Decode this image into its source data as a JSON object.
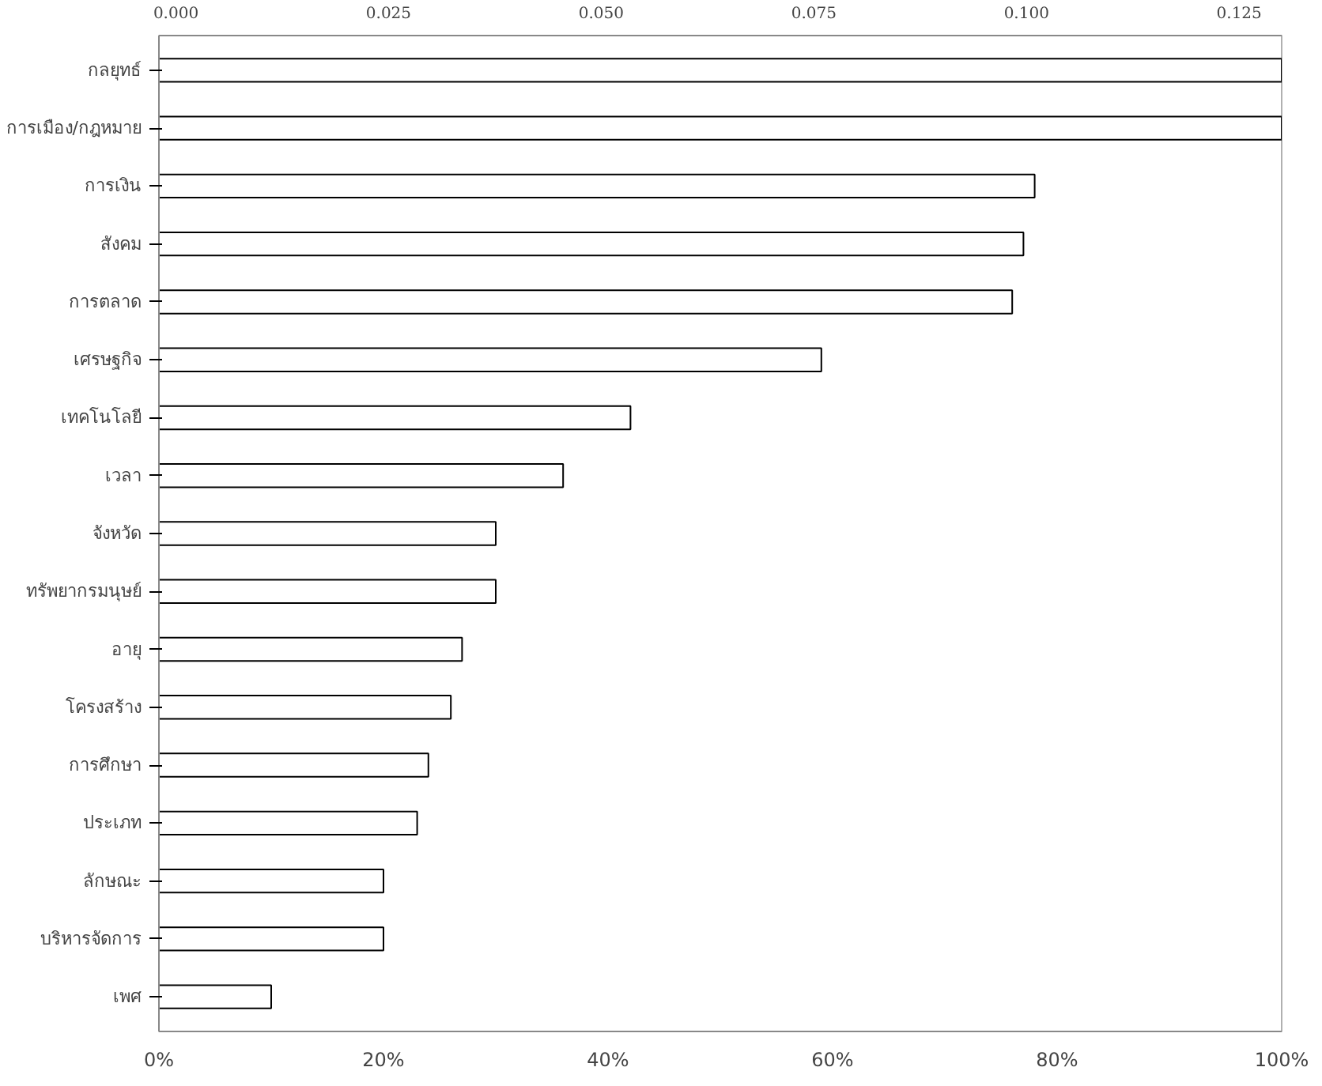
{
  "chart_data": {
    "type": "bar",
    "orientation": "horizontal",
    "categories": [
      "กลยุทธ์",
      "การเมือง/กฎหมาย",
      "การเงิน",
      "สังคม",
      "การตลาด",
      "เศรษฐกิจ",
      "เทคโนโลยี",
      "เวลา",
      "จังหวัด",
      "ทรัพยากรมนุษย์",
      "อายุ",
      "โครงสร้าง",
      "การศึกษา",
      "ประเภท",
      "ลักษณะ",
      "บริหารจัดการ",
      "เพศ"
    ],
    "values": [
      100,
      100,
      78,
      77,
      76,
      59,
      42,
      36,
      30,
      30,
      27,
      26,
      24,
      23,
      20,
      20,
      10
    ],
    "color": "#ffffff",
    "xlim": [
      0,
      100
    ],
    "xticks": [
      {
        "value": 0,
        "label": "0%"
      },
      {
        "value": 20,
        "label": "20%"
      },
      {
        "value": 40,
        "label": "40%"
      },
      {
        "value": 60,
        "label": "60%"
      },
      {
        "value": 80,
        "label": "80%"
      },
      {
        "value": 100,
        "label": "100%"
      }
    ],
    "x2lim": [
      -0.002,
      0.13
    ],
    "x2ticks": [
      {
        "value": 0,
        "label": "0.000"
      },
      {
        "value": 0.025,
        "label": "0.025"
      },
      {
        "value": 0.05,
        "label": "0.050"
      },
      {
        "value": 0.075,
        "label": "0.075"
      },
      {
        "value": 0.1,
        "label": "0.100"
      },
      {
        "value": 0.125,
        "label": "0.125"
      }
    ],
    "grid": false
  }
}
